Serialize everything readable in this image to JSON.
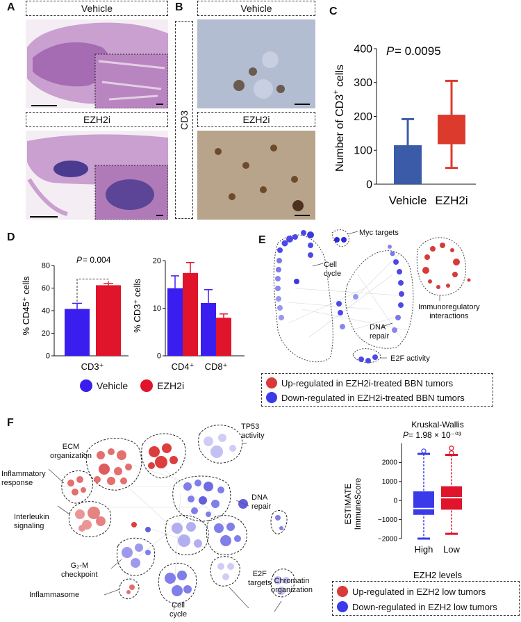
{
  "panels": {
    "A": "A",
    "B": "B",
    "C": "C",
    "D": "D",
    "E": "E",
    "F": "F"
  },
  "panelA": {
    "top_label": "Vehicle",
    "bottom_label": "EZH2i"
  },
  "panelB": {
    "side_label": "CD3",
    "top_label": "Vehicle",
    "bottom_label": "EZH2i"
  },
  "panelC": {
    "p_italic": "P",
    "p_value": " = 0.0095",
    "ylabel_main": "Number of CD3",
    "ylabel_sup": "+",
    "ylabel_tail": " cells"
  },
  "panelD": {
    "ylabel_left": "% CD45⁺ cells",
    "ylabel_right": "% CD3⁺ cells",
    "p_italic": "P",
    "p_value": " = 0.004",
    "legend": [
      {
        "label": "Vehicle",
        "color": "#3a1ef0"
      },
      {
        "label": "EZH2i",
        "color": "#e0142a"
      }
    ]
  },
  "panelE": {
    "labels": {
      "myc": "Myc targets",
      "cell_cycle": "Cell\ncycle",
      "dna_repair": "DNA\nrepair",
      "e2f": "E2F activity",
      "immuno": "Immunoregulatory\ninteractions"
    },
    "legend": [
      {
        "label": "Up-regulated in EZH2i-treated BBN tumors",
        "color": "#d83a3a"
      },
      {
        "label": "Down-regulated in EZH2i-treated BBN tumors",
        "color": "#3a3aea"
      }
    ]
  },
  "panelF": {
    "labels": {
      "tp53": "TP53\nactivity",
      "ecm": "ECM\norganization",
      "inflam": "Inflammatory\nresponse",
      "dna": "DNA\nrepair",
      "interleukin": "Interleukin\nsignaling",
      "g2m": "G₂-M\ncheckpoint",
      "inflammasome": "Inflammasome",
      "cell_cycle": "Cell\ncycle",
      "e2f": "E2F\ntargets",
      "chromatin": "Chromatin\norganization"
    },
    "box_title": "Kruskal-Wallis",
    "box_p_italic": "P",
    "box_p_value": " = 1.98 × 10⁻⁰³",
    "box_ylabel_1": "ESTIMATE",
    "box_ylabel_2": "ImmuneScore",
    "box_xlabel": "EZH2 levels",
    "legend": [
      {
        "label": "Up-regulated in EZH2 low tumors",
        "color": "#d83a3a"
      },
      {
        "label": "Down-regulated in EZH2 low tumors",
        "color": "#3a3aea"
      }
    ]
  },
  "chart_data": [
    {
      "type": "bar",
      "title": "",
      "xlabel": "",
      "ylabel": "Number of CD3+ cells",
      "categories": [
        "Vehicle",
        "EZH2i"
      ],
      "values": [
        115,
        162
      ],
      "error_low": [
        0,
        48
      ],
      "error_high": [
        192,
        305
      ],
      "box_low": [
        0,
        118
      ],
      "box_high": [
        115,
        205
      ],
      "ylim": [
        0,
        400
      ],
      "yticks": [
        0,
        100,
        200,
        300,
        400
      ],
      "colors": [
        "#3b5ba9",
        "#dd3a2e"
      ],
      "annotation": "P = 0.0095"
    },
    {
      "type": "bar",
      "title": "",
      "xlabel": "CD3⁺",
      "ylabel": "% CD45⁺ cells",
      "categories": [
        "Vehicle",
        "EZH2i"
      ],
      "values": [
        41.5,
        62.5
      ],
      "errors": [
        5,
        1.5
      ],
      "ylim": [
        0,
        80
      ],
      "yticks": [
        0,
        20,
        40,
        60,
        80
      ],
      "colors": [
        "#3a1ef0",
        "#e0142a"
      ],
      "annotation": "P = 0.004"
    },
    {
      "type": "bar",
      "title": "",
      "xlabel": "",
      "ylabel": "% CD3⁺ cells",
      "categories": [
        "CD4⁺",
        "CD8⁺"
      ],
      "series": [
        {
          "name": "Vehicle",
          "values": [
            14.2,
            11.1
          ],
          "errors": [
            2.6,
            2.8
          ]
        },
        {
          "name": "EZH2i",
          "values": [
            17.4,
            8.0
          ],
          "errors": [
            2.2,
            0.8
          ]
        }
      ],
      "ylim": [
        0,
        20
      ],
      "yticks": [
        0,
        10,
        20
      ]
    },
    {
      "type": "box",
      "title": "Kruskal-Wallis",
      "xlabel": "EZH2 levels",
      "ylabel": "ESTIMATE ImmuneScore",
      "categories": [
        "High",
        "Low"
      ],
      "series": [
        {
          "name": "High",
          "q1": -750,
          "median": -420,
          "q3": 480,
          "whisker_low": -2000,
          "whisker_high": 2450,
          "outliers": [
            2600
          ]
        },
        {
          "name": "Low",
          "q1": -480,
          "median": 150,
          "q3": 750,
          "whisker_low": -1750,
          "whisker_high": 2400,
          "outliers": [
            2500,
            2750
          ]
        }
      ],
      "ylim": [
        -2000,
        3000
      ],
      "yticks": [
        -2000,
        -1000,
        0,
        1000,
        2000
      ],
      "colors": [
        "#3a3aea",
        "#e0142a"
      ],
      "annotation": "P = 1.98 × 10⁻⁰³"
    }
  ]
}
